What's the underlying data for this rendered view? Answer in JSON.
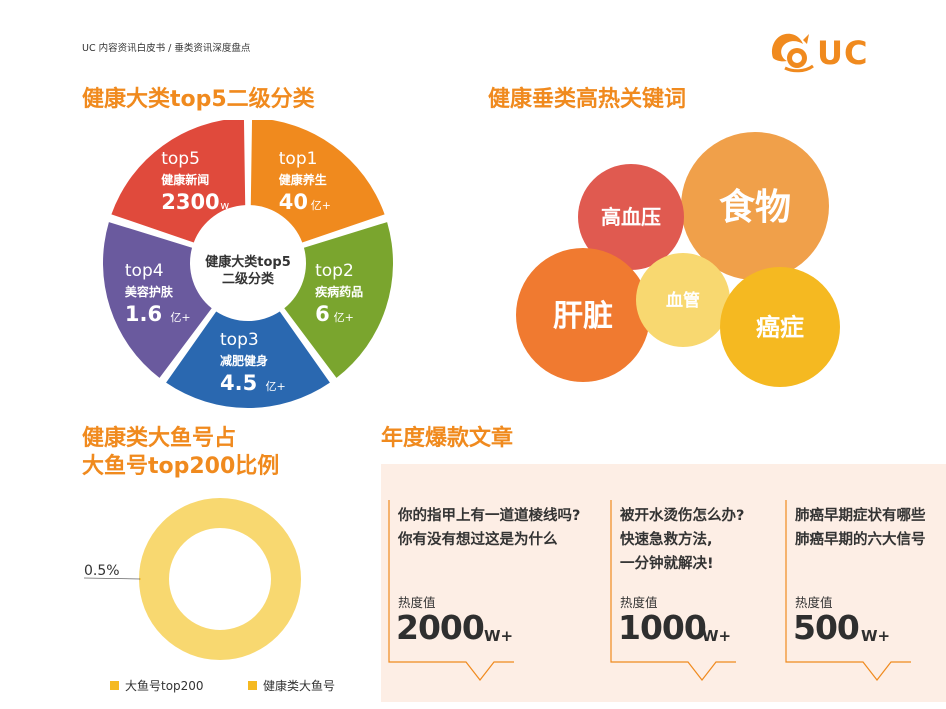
{
  "header": {
    "breadcrumb": "UC 内容资讯白皮书 / 垂类资讯深度盘点",
    "logo_text": "UC",
    "logo_icon": "squirrel-logo-icon"
  },
  "colors": {
    "orange": "#f08a1e",
    "red": "#e04a3c",
    "green": "#7aa52e",
    "blue": "#2a68b0",
    "purple": "#6a5a9e",
    "yellow": "#f5b921",
    "light_yellow": "#f8d870",
    "pink_bg": "#fdeee5"
  },
  "sections": {
    "categories_title": "健康大类top5二级分类",
    "keywords_title": "健康垂类高热关键词",
    "ratio_title_line1": "健康类大鱼号占",
    "ratio_title_line2": "大鱼号top200比例",
    "articles_title": "年度爆款文章"
  },
  "chart_data": [
    {
      "type": "pie",
      "center_label_line1": "健康大类top5",
      "center_label_line2": "二级分类",
      "slices": [
        {
          "rank": "top1",
          "name": "健康养生",
          "value": 40,
          "value_text": "40",
          "unit": "亿+",
          "color": "#f08a1e"
        },
        {
          "rank": "top2",
          "name": "疾病药品",
          "value": 6,
          "value_text": "6",
          "unit": "亿+",
          "color": "#7aa52e"
        },
        {
          "rank": "top3",
          "name": "减肥健身",
          "value": 4.5,
          "value_text": "4.5",
          "unit": "亿+",
          "color": "#2a68b0"
        },
        {
          "rank": "top4",
          "name": "美容护肤",
          "value": 1.6,
          "value_text": "1.6",
          "unit": "亿+",
          "color": "#6a5a9e"
        },
        {
          "rank": "top5",
          "name": "健康新闻",
          "value": 2300,
          "value_text": "2300",
          "unit": "w",
          "color": "#e04a3c"
        }
      ]
    },
    {
      "type": "bubble",
      "keywords": [
        {
          "label": "食物",
          "color": "#f0a04a"
        },
        {
          "label": "高血压",
          "color": "#e05a50"
        },
        {
          "label": "肝脏",
          "color": "#f07a30"
        },
        {
          "label": "血管",
          "color": "#f8d870"
        },
        {
          "label": "癌症",
          "color": "#f5b921"
        }
      ]
    },
    {
      "type": "pie",
      "style": "donut",
      "slices": [
        {
          "name": "大鱼号top200",
          "value": 99.5,
          "color": "#f8d870"
        },
        {
          "name": "健康类大鱼号",
          "value": 0.5,
          "color": "#f5b921"
        }
      ],
      "annotation": "0.5%",
      "legend": [
        {
          "label": "大鱼号top200",
          "color": "#f5b921"
        },
        {
          "label": "健康类大鱼号",
          "color": "#f5b921"
        }
      ]
    }
  ],
  "articles": {
    "heat_label": "热度值",
    "items": [
      {
        "title": "你的指甲上有一道道棱线吗?\n你有没有想过这是为什么",
        "heat_value": "2000",
        "unit": "W+"
      },
      {
        "title": "被开水烫伤怎么办?\n快速急救方法,\n一分钟就解决!",
        "heat_value": "1000",
        "unit": "W+"
      },
      {
        "title": "肺癌早期症状有哪些\n肺癌早期的六大信号",
        "heat_value": "500",
        "unit": "W+"
      }
    ]
  }
}
